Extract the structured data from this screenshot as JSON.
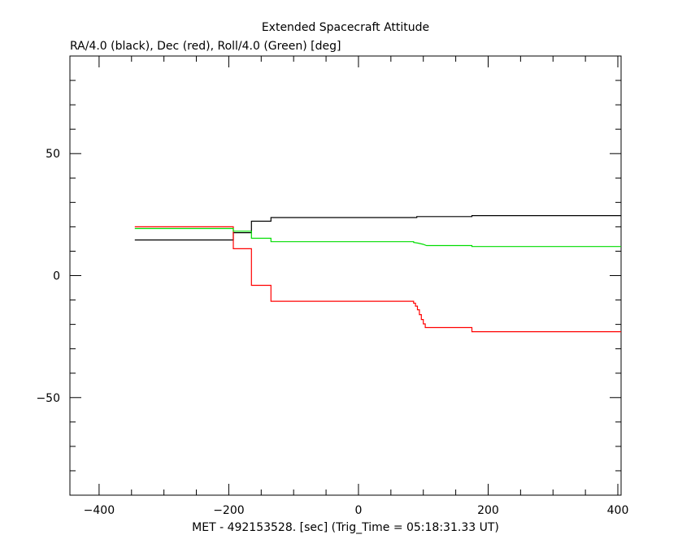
{
  "chart_data": {
    "type": "line",
    "title": "Extended Spacecraft Attitude",
    "subtitle": "RA/4.0 (black), Dec (red), Roll/4.0 (Green) [deg]",
    "xlabel": "MET - 492153528. [sec] (Trig_Time = 05:18:31.33 UT)",
    "ylabel": "",
    "xlim": [
      -445,
      405
    ],
    "ylim": [
      -90,
      90
    ],
    "xticks_major": [
      -400,
      -200,
      0,
      200,
      400
    ],
    "xticks_minor_step": 50,
    "yticks_major": [
      -50,
      0,
      50
    ],
    "yticks_minor_step": 10,
    "grid": false,
    "legend": "none",
    "series": [
      {
        "color": "#000000",
        "step": true,
        "points": [
          [
            -345,
            14.6
          ],
          [
            -193,
            14.6
          ],
          [
            -193,
            17.6
          ],
          [
            -165,
            17.6
          ],
          [
            -165,
            22.3
          ],
          [
            -135,
            22.3
          ],
          [
            -135,
            23.8
          ],
          [
            90,
            23.8
          ],
          [
            90,
            24.2
          ],
          [
            175,
            24.2
          ],
          [
            175,
            24.6
          ],
          [
            405,
            24.6
          ]
        ]
      },
      {
        "color": "#ff0000",
        "step": true,
        "points": [
          [
            -345,
            20.0
          ],
          [
            -193,
            20.0
          ],
          [
            -193,
            11.0
          ],
          [
            -165,
            11.0
          ],
          [
            -165,
            -4.0
          ],
          [
            -135,
            -4.0
          ],
          [
            -135,
            -10.5
          ],
          [
            85,
            -10.5
          ],
          [
            85,
            -11.3
          ],
          [
            88,
            -11.3
          ],
          [
            88,
            -12.5
          ],
          [
            91,
            -12.5
          ],
          [
            91,
            -14.0
          ],
          [
            94,
            -14.0
          ],
          [
            94,
            -16.0
          ],
          [
            97,
            -16.0
          ],
          [
            97,
            -18.0
          ],
          [
            100,
            -18.0
          ],
          [
            100,
            -19.8
          ],
          [
            103,
            -19.8
          ],
          [
            103,
            -21.3
          ],
          [
            175,
            -21.3
          ],
          [
            175,
            -23.0
          ],
          [
            405,
            -23.0
          ]
        ]
      },
      {
        "color": "#00dd00",
        "step": true,
        "points": [
          [
            -345,
            19.3
          ],
          [
            -193,
            19.3
          ],
          [
            -193,
            18.2
          ],
          [
            -165,
            18.2
          ],
          [
            -165,
            15.3
          ],
          [
            -135,
            15.3
          ],
          [
            -135,
            13.9
          ],
          [
            85,
            13.9
          ],
          [
            85,
            13.6
          ],
          [
            92,
            13.3
          ],
          [
            100,
            12.8
          ],
          [
            105,
            12.3
          ],
          [
            175,
            12.3
          ],
          [
            175,
            11.9
          ],
          [
            405,
            11.9
          ]
        ]
      }
    ]
  }
}
